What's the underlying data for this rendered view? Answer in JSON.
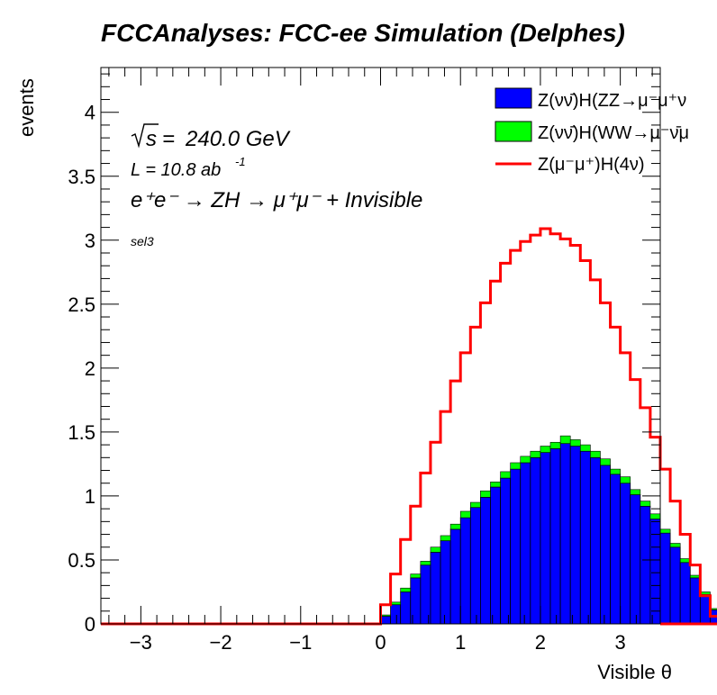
{
  "chart_data": {
    "type": "histogram",
    "title": "FCCAnalyses: FCC-ee Simulation (Delphes)",
    "xlabel": "Visible θ",
    "ylabel": "events",
    "xlim": [
      -3.5,
      3.5
    ],
    "ylim": [
      0,
      4.35
    ],
    "x_ticks": [
      "−3",
      "−2",
      "−1",
      "0",
      "1",
      "2",
      "3"
    ],
    "y_ticks": [
      "0",
      "0.5",
      "1",
      "1.5",
      "2",
      "2.5",
      "3",
      "3.5",
      "4"
    ],
    "bin_width": 0.125,
    "bins_start": 0.0,
    "annotations": {
      "sqrt_s": "240.0 GeV",
      "lumi": "L = 10.8 ab",
      "lumi_exp": "-1",
      "process": "e⁺e⁻ → ZH → μ⁺μ⁻ + Invisible",
      "selection": "sel3"
    },
    "series": [
      {
        "name": "Z(νν̄)H(ZZ→μ⁻μ⁺ν",
        "style": "filled",
        "color": "#0000ff",
        "values": [
          0.06,
          0.15,
          0.25,
          0.36,
          0.46,
          0.56,
          0.65,
          0.74,
          0.83,
          0.91,
          0.99,
          1.07,
          1.14,
          1.21,
          1.26,
          1.3,
          1.34,
          1.37,
          1.41,
          1.39,
          1.35,
          1.3,
          1.24,
          1.17,
          1.1,
          1.01,
          0.92,
          0.82,
          0.71,
          0.6,
          0.48,
          0.36,
          0.23,
          0.11,
          0.03
        ]
      },
      {
        "name": "Z(νν̄)H(WW→μ⁻ν̄μ",
        "style": "filled",
        "color": "#00ff00",
        "values": [
          0.01,
          0.02,
          0.03,
          0.03,
          0.03,
          0.04,
          0.04,
          0.04,
          0.05,
          0.04,
          0.05,
          0.04,
          0.05,
          0.05,
          0.05,
          0.05,
          0.05,
          0.05,
          0.06,
          0.05,
          0.05,
          0.05,
          0.05,
          0.04,
          0.05,
          0.04,
          0.04,
          0.04,
          0.03,
          0.03,
          0.03,
          0.02,
          0.02,
          0.01,
          0.0
        ]
      },
      {
        "name": "Z(μ⁻μ⁺)H(4ν)",
        "style": "line",
        "color": "#ff0000",
        "values": [
          0.15,
          0.39,
          0.66,
          0.92,
          1.18,
          1.42,
          1.66,
          1.9,
          2.12,
          2.32,
          2.51,
          2.68,
          2.82,
          2.92,
          2.99,
          3.04,
          3.09,
          3.05,
          3.01,
          2.96,
          2.84,
          2.69,
          2.51,
          2.32,
          2.12,
          1.91,
          1.69,
          1.46,
          1.21,
          0.96,
          0.7,
          0.46,
          0.22,
          0.06,
          0.0
        ]
      }
    ]
  }
}
